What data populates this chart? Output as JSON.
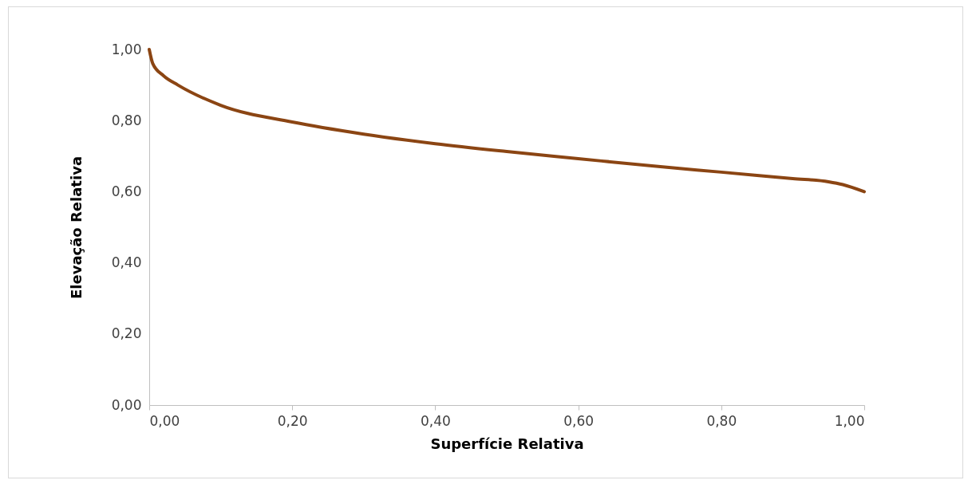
{
  "chart_data": {
    "type": "line",
    "xlabel": "Superfície Relativa",
    "ylabel": "Elevação Relativa",
    "series": [
      {
        "color": "#8b4513",
        "x": [
          0,
          0.005,
          0.02,
          0.04,
          0.1,
          0.2,
          0.3,
          0.4,
          0.5,
          0.6,
          0.7,
          0.8,
          0.9,
          0.95,
          0.97,
          1.0
        ],
        "values": [
          1.0,
          0.96,
          0.926,
          0.9,
          0.843,
          0.796,
          0.762,
          0.735,
          0.713,
          0.693,
          0.673,
          0.655,
          0.637,
          0.628,
          0.62,
          0.6
        ]
      }
    ],
    "xlim": [
      0,
      1
    ],
    "ylim": [
      0,
      1
    ],
    "xticks": [
      {
        "value": 0,
        "label": "0,00"
      },
      {
        "value": 0.2,
        "label": "0,20"
      },
      {
        "value": 0.4,
        "label": "0,40"
      },
      {
        "value": 0.6,
        "label": "0,60"
      },
      {
        "value": 0.8,
        "label": "0,80"
      },
      {
        "value": 1,
        "label": "1,00"
      }
    ],
    "yticks": [
      {
        "value": 0,
        "label": "0,00"
      },
      {
        "value": 0.2,
        "label": "0,20"
      },
      {
        "value": 0.4,
        "label": "0,40"
      },
      {
        "value": 0.6,
        "label": "0,60"
      },
      {
        "value": 0.8,
        "label": "0,80"
      },
      {
        "value": 1,
        "label": "1,00"
      }
    ],
    "grid": false,
    "marker": "none",
    "line_style": "solid"
  }
}
